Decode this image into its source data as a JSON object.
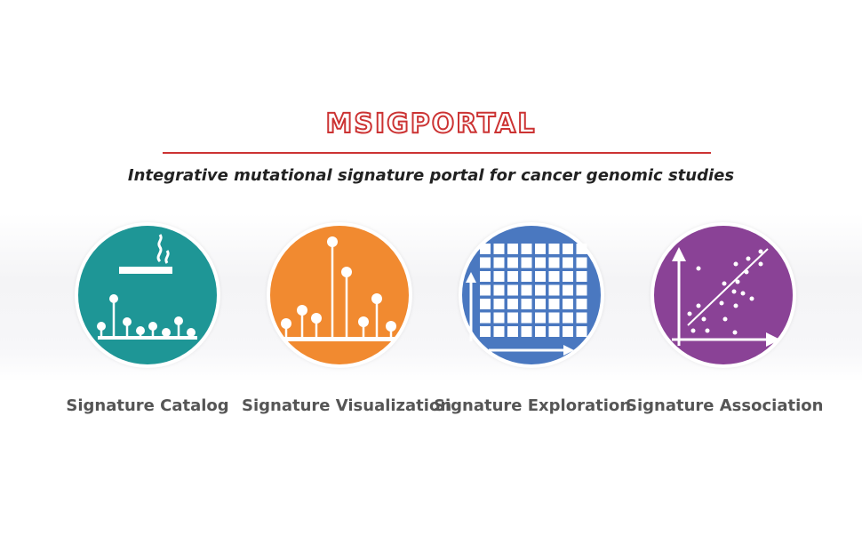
{
  "header": {
    "title": "MSIGPORTAL",
    "subtitle": "Integrative mutational signature portal for cancer genomic studies"
  },
  "features": [
    {
      "label": "Signature Catalog",
      "icon": "cigarette-lollipop-icon",
      "color": "#1e9696"
    },
    {
      "label": "Signature Visualization",
      "icon": "lollipop-plot-icon",
      "color": "#f18a30"
    },
    {
      "label": "Signature Exploration",
      "icon": "heatmap-grid-icon",
      "color": "#4a78c0"
    },
    {
      "label": "Signature Association",
      "icon": "scatter-plot-icon",
      "color": "#8a4296"
    }
  ],
  "colors": {
    "title": "#cc3333"
  }
}
